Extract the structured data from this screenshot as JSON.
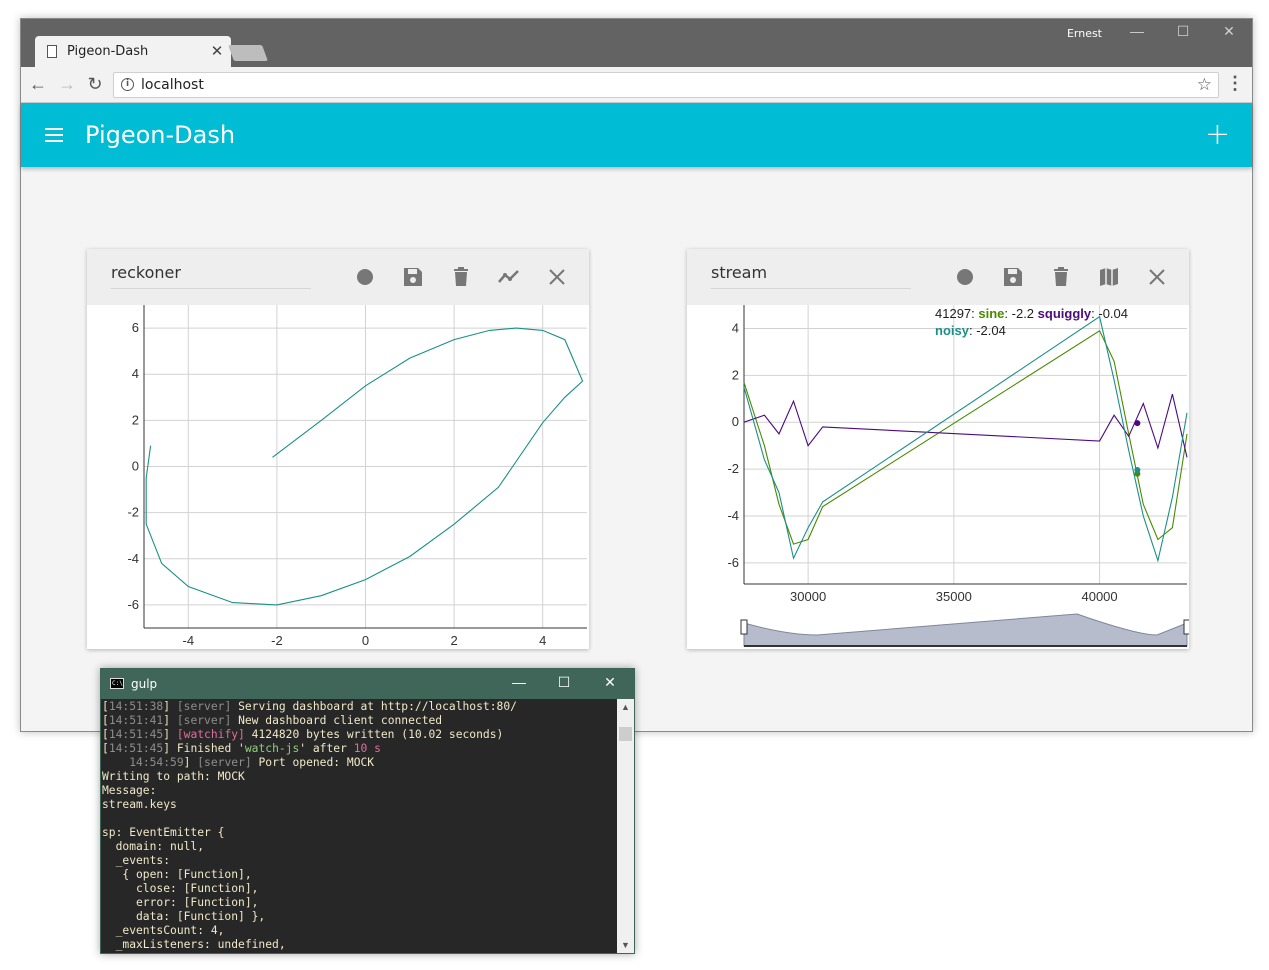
{
  "browser": {
    "tab_title": "Pigeon-Dash",
    "tab_close": "✕",
    "user": "Ernest",
    "controls": {
      "minimize": "—",
      "maximize": "☐",
      "close": "✕"
    },
    "nav": {
      "back": "←",
      "forward": "→",
      "reload": "↻"
    },
    "url": "localhost",
    "info_icon": "i",
    "star_icon": "☆",
    "menu_icon": "⋮"
  },
  "app": {
    "title": "Pigeon-Dash",
    "add_label": "+",
    "accent": "#00bcd4"
  },
  "cards": [
    {
      "name": "reckoner",
      "icons": [
        "record-icon",
        "save-icon",
        "delete-icon",
        "line-chart-icon",
        "close-icon"
      ]
    },
    {
      "name": "stream",
      "icons": [
        "record-icon",
        "save-icon",
        "delete-icon",
        "map-icon",
        "close-icon"
      ]
    }
  ],
  "chart_data": [
    {
      "type": "line",
      "title": "reckoner",
      "xlim": [
        -5,
        5
      ],
      "ylim": [
        -7,
        7
      ],
      "x_ticks": [
        "-4",
        "-2",
        "0",
        "2",
        "4"
      ],
      "y_ticks": [
        "6",
        "4",
        "2",
        "0",
        "-2",
        "-4",
        "-6"
      ],
      "grid": true,
      "series": [
        {
          "color": "#1a9088",
          "x": [
            -2.1,
            -1.0,
            0.0,
            1.0,
            2.0,
            2.8,
            3.4,
            4.0,
            4.5,
            4.9,
            4.5,
            4.0,
            3.0,
            2.0,
            1.0,
            0.0,
            -1.0,
            -2.0,
            -3.0,
            -4.0,
            -4.6,
            -4.95,
            -4.95,
            -4.85
          ],
          "y": [
            0.4,
            2.0,
            3.5,
            4.7,
            5.5,
            5.9,
            6.0,
            5.9,
            5.5,
            3.7,
            3.0,
            1.9,
            -0.9,
            -2.5,
            -3.9,
            -4.9,
            -5.6,
            -6.0,
            -5.9,
            -5.2,
            -4.2,
            -2.5,
            -0.5,
            0.9
          ]
        }
      ]
    },
    {
      "type": "line",
      "title": "stream",
      "xlim": [
        27800,
        43000
      ],
      "ylim": [
        -6.9,
        5.0
      ],
      "x_ticks": [
        "30000",
        "35000",
        "40000"
      ],
      "y_ticks": [
        "4",
        "2",
        "0",
        "-2",
        "-4",
        "-6"
      ],
      "grid": true,
      "legend_position": "top",
      "legend": {
        "x_value": "41297",
        "entries": [
          {
            "name": "sine",
            "value": "-2.2",
            "color": "#4a8a00"
          },
          {
            "name": "squiggly",
            "value": "-0.04",
            "color": "#4b0a80"
          },
          {
            "name": "noisy",
            "value": "-2.04",
            "color": "#1a9088"
          }
        ]
      },
      "series": [
        {
          "name": "sine",
          "color": "#4a8a00",
          "x": [
            27800,
            28500,
            29000,
            29500,
            30000,
            30500,
            40000,
            40500,
            41000,
            41500,
            42000,
            42500,
            43000
          ],
          "y": [
            1.7,
            -1.0,
            -3.5,
            -5.2,
            -5.0,
            -3.6,
            3.9,
            2.6,
            -0.5,
            -3.5,
            -5.0,
            -4.5,
            -0.5
          ]
        },
        {
          "name": "squiggly",
          "color": "#4b0a80",
          "x": [
            27800,
            28500,
            29000,
            29500,
            30000,
            30500,
            40000,
            40500,
            41000,
            41500,
            42000,
            42500,
            43000
          ],
          "y": [
            0.0,
            0.3,
            -0.5,
            0.9,
            -1.0,
            -0.2,
            -0.8,
            0.3,
            -0.6,
            0.8,
            -1.1,
            1.2,
            -1.5
          ]
        },
        {
          "name": "noisy",
          "color": "#1a9088",
          "x": [
            27800,
            28500,
            29000,
            29500,
            30000,
            30500,
            40000,
            40500,
            41000,
            41500,
            42000,
            42500,
            43000
          ],
          "y": [
            1.5,
            -1.6,
            -3.0,
            -5.8,
            -4.5,
            -3.4,
            4.5,
            1.8,
            -1.2,
            -4.0,
            -5.9,
            -3.2,
            0.4
          ]
        }
      ]
    }
  ],
  "terminal": {
    "title": "gulp",
    "icon_text": "C:\\",
    "controls": {
      "minimize": "—",
      "maximize": "☐",
      "close": "✕"
    },
    "scroll_up": "▲",
    "scroll_down": "▼",
    "lines": [
      [
        {
          "t": "[",
          "c": ""
        },
        {
          "t": "14:51:38",
          "c": "c-gray"
        },
        {
          "t": "] ",
          "c": ""
        },
        {
          "t": "[server]",
          "c": "c-gray"
        },
        {
          "t": " Serving dashboard at http://localhost:80/",
          "c": ""
        }
      ],
      [
        {
          "t": "[",
          "c": ""
        },
        {
          "t": "14:51:41",
          "c": "c-gray"
        },
        {
          "t": "] ",
          "c": ""
        },
        {
          "t": "[server]",
          "c": "c-gray"
        },
        {
          "t": " New dashboard client connected",
          "c": ""
        }
      ],
      [
        {
          "t": "[",
          "c": ""
        },
        {
          "t": "14:51:45",
          "c": "c-gray"
        },
        {
          "t": "] ",
          "c": ""
        },
        {
          "t": "[watchify]",
          "c": "c-mag"
        },
        {
          "t": " 4124820 bytes written (10.02 seconds)",
          "c": ""
        }
      ],
      [
        {
          "t": "[",
          "c": ""
        },
        {
          "t": "14:51:45",
          "c": "c-gray"
        },
        {
          "t": "] Finished '",
          "c": ""
        },
        {
          "t": "watch-js",
          "c": "c-grn"
        },
        {
          "t": "' after ",
          "c": ""
        },
        {
          "t": "10 s",
          "c": "c-mag"
        }
      ],
      [
        {
          "t": "    ",
          "c": ""
        },
        {
          "t": "14:54:59",
          "c": "c-gray"
        },
        {
          "t": "] ",
          "c": ""
        },
        {
          "t": "[server]",
          "c": "c-gray"
        },
        {
          "t": " Port opened: MOCK",
          "c": ""
        }
      ],
      [
        {
          "t": "Writing to path: MOCK",
          "c": ""
        }
      ],
      [
        {
          "t": "Message:",
          "c": ""
        }
      ],
      [
        {
          "t": "stream.keys",
          "c": ""
        }
      ],
      [
        {
          "t": "",
          "c": ""
        }
      ],
      [
        {
          "t": "sp: EventEmitter {",
          "c": ""
        }
      ],
      [
        {
          "t": "  domain: null,",
          "c": ""
        }
      ],
      [
        {
          "t": "  _events:",
          "c": ""
        }
      ],
      [
        {
          "t": "   { open: [Function],",
          "c": ""
        }
      ],
      [
        {
          "t": "     close: [Function],",
          "c": ""
        }
      ],
      [
        {
          "t": "     error: [Function],",
          "c": ""
        }
      ],
      [
        {
          "t": "     data: [Function] },",
          "c": ""
        }
      ],
      [
        {
          "t": "  _eventsCount: 4,",
          "c": ""
        }
      ],
      [
        {
          "t": "  _maxListeners: undefined,",
          "c": ""
        }
      ]
    ]
  }
}
